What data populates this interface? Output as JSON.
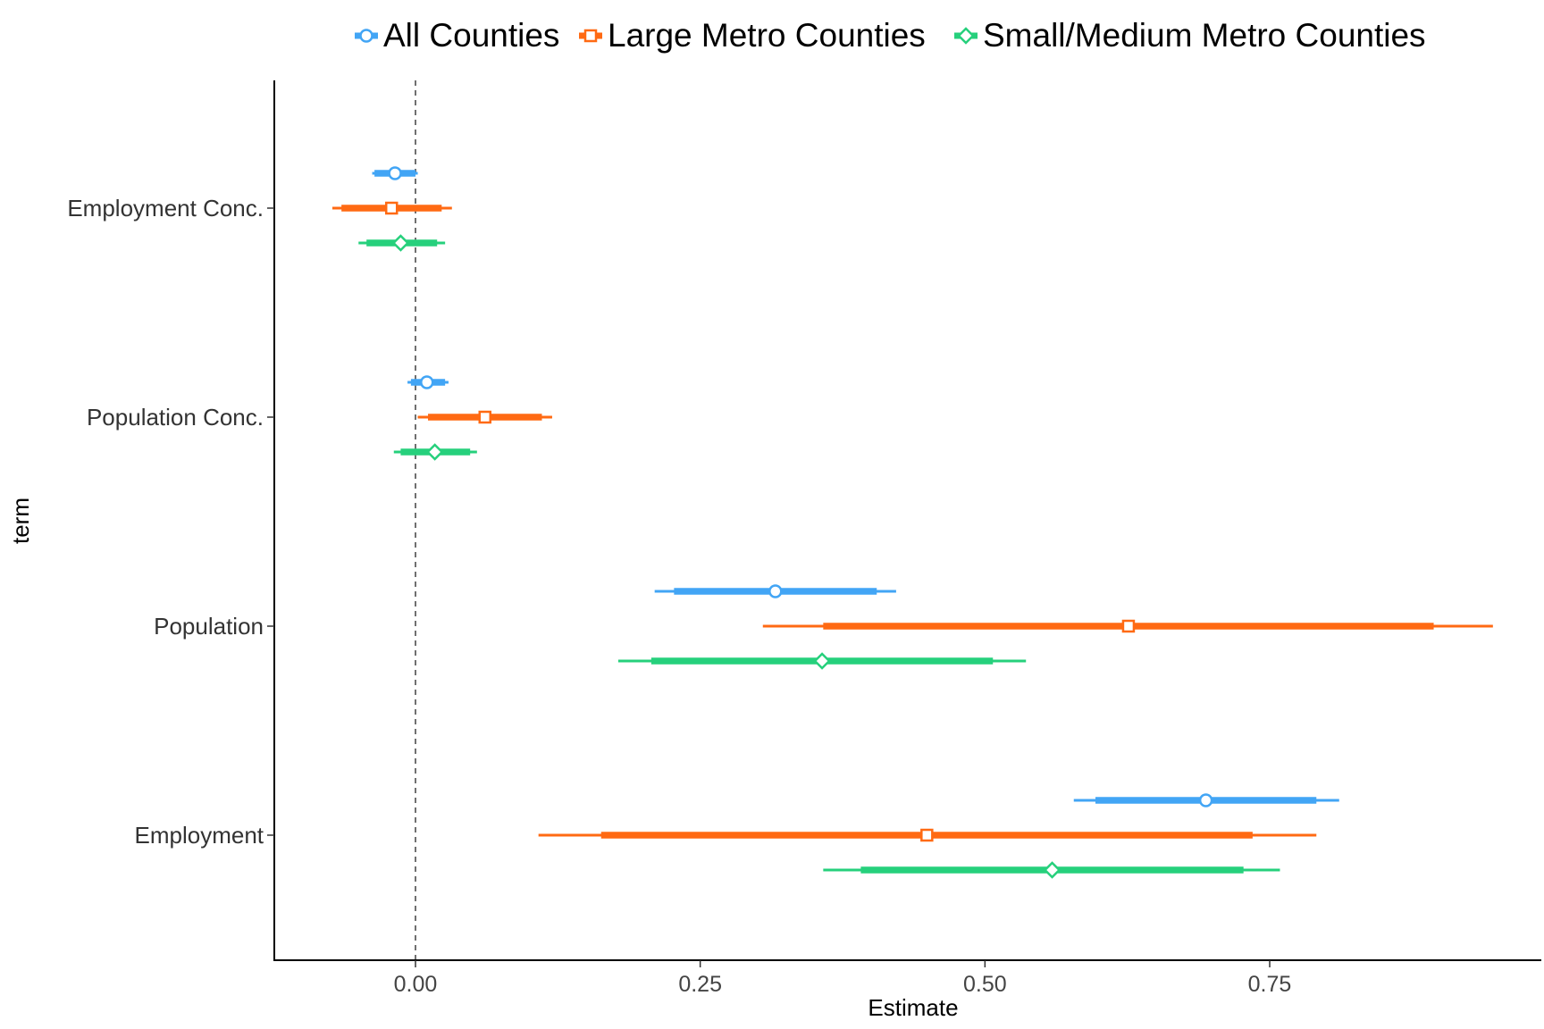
{
  "chart_data": {
    "type": "coefficient-plot",
    "title": "",
    "xlabel": "Estimate",
    "ylabel": "term",
    "xlim": [
      -0.125,
      1.0
    ],
    "xticks": [
      0.0,
      0.25,
      0.5,
      0.75
    ],
    "xtick_labels": [
      "0.00",
      "0.25",
      "0.50",
      "0.75"
    ],
    "reference_line": 0,
    "grid": false,
    "legend_position": "top",
    "terms": [
      "Employment Conc.",
      "Population Conc.",
      "Population",
      "Employment"
    ],
    "series": [
      {
        "name": "All Counties",
        "color": "#42A5F5",
        "marker": "circle",
        "points": [
          {
            "term": "Employment Conc.",
            "estimate": -0.018,
            "inner": [
              -0.036,
              0.0
            ],
            "outer": [
              -0.038,
              0.002
            ]
          },
          {
            "term": "Population Conc.",
            "estimate": 0.01,
            "inner": [
              -0.004,
              0.026
            ],
            "outer": [
              -0.007,
              0.029
            ]
          },
          {
            "term": "Population",
            "estimate": 0.316,
            "inner": [
              0.227,
              0.405
            ],
            "outer": [
              0.21,
              0.422
            ]
          },
          {
            "term": "Employment",
            "estimate": 0.694,
            "inner": [
              0.597,
              0.791
            ],
            "outer": [
              0.578,
              0.811
            ]
          }
        ]
      },
      {
        "name": "Large Metro Counties",
        "color": "#FF6A13",
        "marker": "square",
        "points": [
          {
            "term": "Employment Conc.",
            "estimate": -0.021,
            "inner": [
              -0.065,
              0.023
            ],
            "outer": [
              -0.073,
              0.032
            ]
          },
          {
            "term": "Population Conc.",
            "estimate": 0.061,
            "inner": [
              0.011,
              0.111
            ],
            "outer": [
              0.002,
              0.12
            ]
          },
          {
            "term": "Population",
            "estimate": 0.626,
            "inner": [
              0.358,
              0.894
            ],
            "outer": [
              0.305,
              0.946
            ]
          },
          {
            "term": "Employment",
            "estimate": 0.449,
            "inner": [
              0.163,
              0.735
            ],
            "outer": [
              0.108,
              0.791
            ]
          }
        ]
      },
      {
        "name": "Small/Medium Metro Counties",
        "color": "#26D07C",
        "marker": "diamond",
        "points": [
          {
            "term": "Employment Conc.",
            "estimate": -0.013,
            "inner": [
              -0.043,
              0.019
            ],
            "outer": [
              -0.05,
              0.026
            ]
          },
          {
            "term": "Population Conc.",
            "estimate": 0.017,
            "inner": [
              -0.013,
              0.048
            ],
            "outer": [
              -0.019,
              0.054
            ]
          },
          {
            "term": "Population",
            "estimate": 0.357,
            "inner": [
              0.207,
              0.507
            ],
            "outer": [
              0.178,
              0.536
            ]
          },
          {
            "term": "Employment",
            "estimate": 0.559,
            "inner": [
              0.391,
              0.727
            ],
            "outer": [
              0.358,
              0.759
            ]
          }
        ]
      }
    ]
  }
}
